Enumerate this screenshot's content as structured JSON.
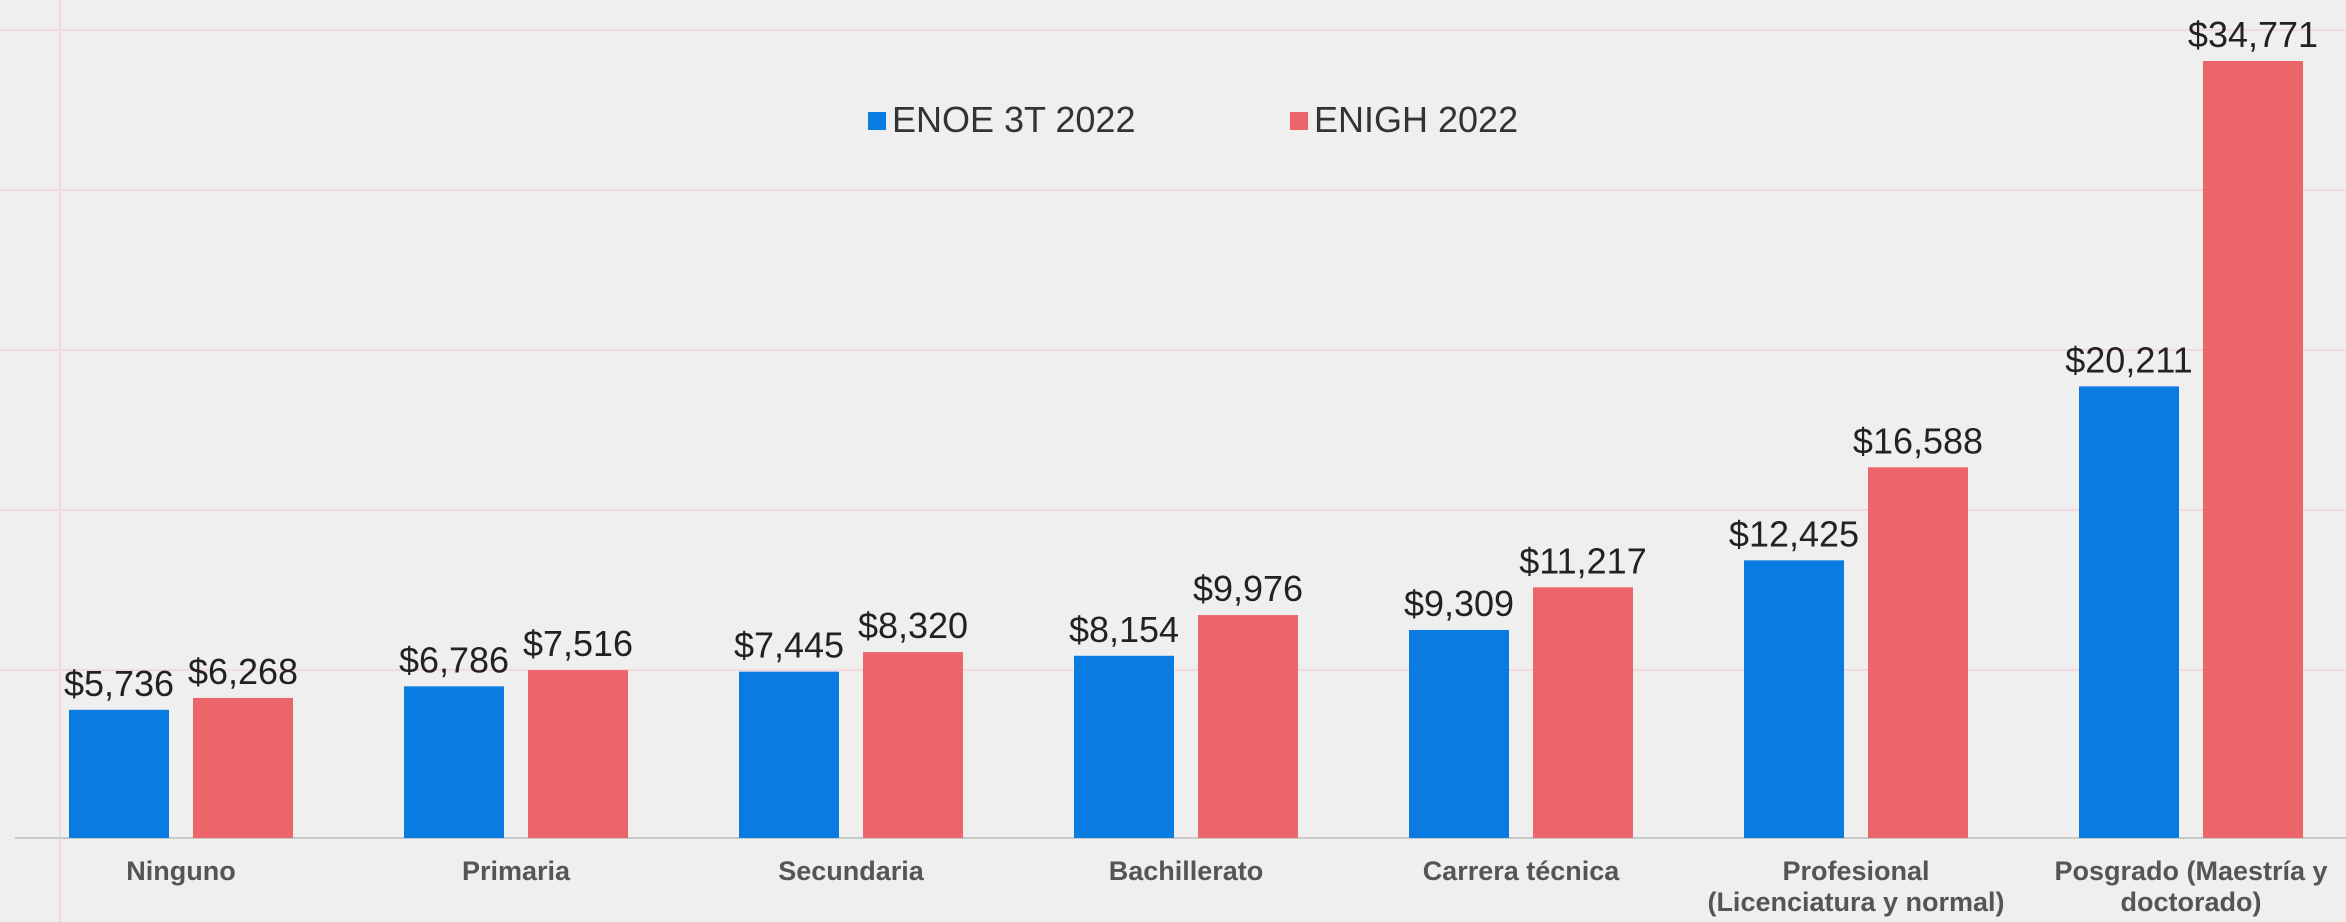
{
  "chart_data": {
    "type": "bar",
    "categories": [
      "Ninguno",
      "Primaria",
      "Secundaria",
      "Bachillerato",
      "Carrera técnica",
      "Profesional\n(Licenciatura y normal)",
      "Posgrado (Maestría y\ndoctorado)"
    ],
    "series": [
      {
        "name": "ENOE 3T 2022",
        "color": "#0a7be0",
        "values": [
          5736,
          6786,
          7445,
          8154,
          9309,
          12425,
          20211
        ],
        "value_labels": [
          "$5,736",
          "$6,786",
          "$7,445",
          "$8,154",
          "$9,309",
          "$12,425",
          "$20,211"
        ]
      },
      {
        "name": "ENIGH 2022",
        "color": "#ec656b",
        "values": [
          6268,
          7516,
          8320,
          9976,
          11217,
          16588,
          34771
        ],
        "value_labels": [
          "$6,268",
          "$7,516",
          "$8,320",
          "$9,976",
          "$11,217",
          "$16,588",
          "$34,771"
        ]
      }
    ],
    "legend": "top"
  }
}
